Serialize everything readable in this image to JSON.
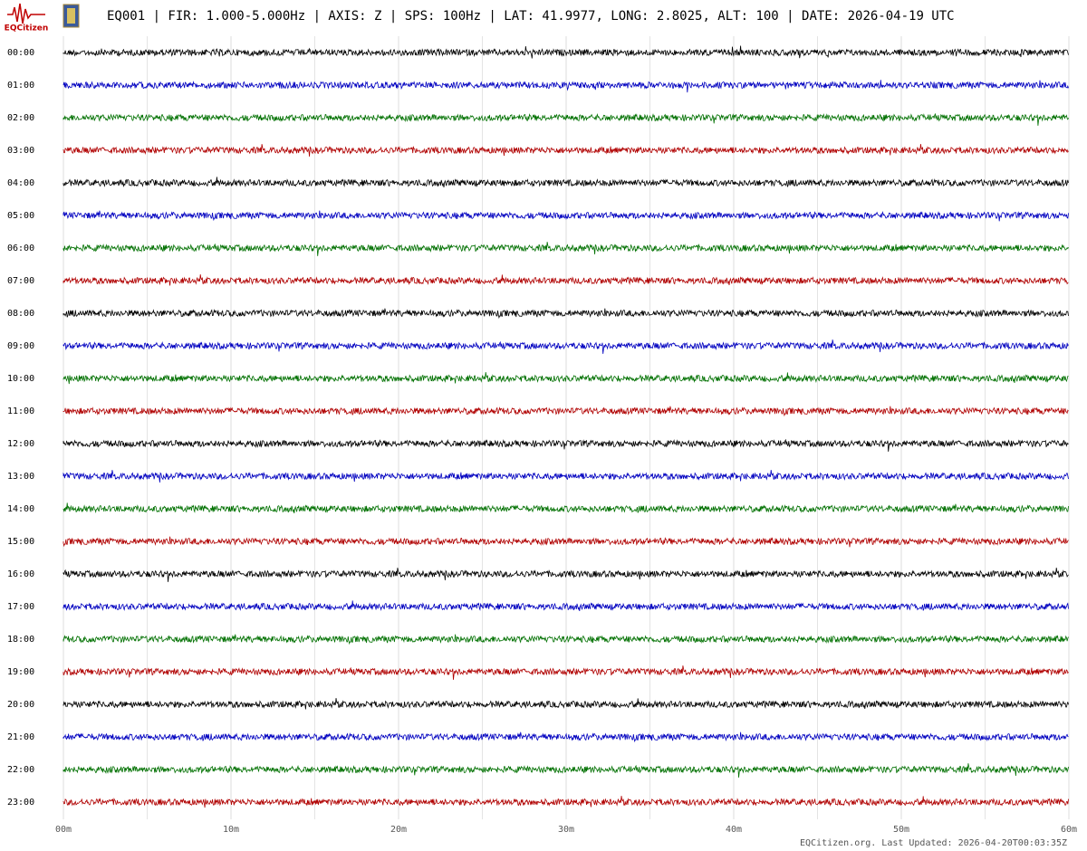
{
  "header": {
    "logo_text": "EQCitizen",
    "title": "EQ001 | FIR: 1.000-5.000Hz | AXIS: Z | SPS: 100Hz | LAT: 41.9977, LONG: 2.8025, ALT: 100 | DATE: 2026-04-19 UTC"
  },
  "chart_data": {
    "type": "helicorder",
    "categories": [
      "00:00",
      "01:00",
      "02:00",
      "03:00",
      "04:00",
      "05:00",
      "06:00",
      "07:00",
      "08:00",
      "09:00",
      "10:00",
      "11:00",
      "12:00",
      "13:00",
      "14:00",
      "15:00",
      "16:00",
      "17:00",
      "18:00",
      "19:00",
      "20:00",
      "21:00",
      "22:00",
      "23:00"
    ],
    "colors": [
      "#000000",
      "#0000c0",
      "#007000",
      "#b00000"
    ],
    "xlim": [
      0,
      60
    ],
    "xticks": [
      {
        "value": 0,
        "label": "00m"
      },
      {
        "value": 10,
        "label": "10m"
      },
      {
        "value": 20,
        "label": "20m"
      },
      {
        "value": 30,
        "label": "30m"
      },
      {
        "value": 40,
        "label": "40m"
      },
      {
        "value": 50,
        "label": "50m"
      },
      {
        "value": 60,
        "label": "60m"
      }
    ],
    "grid": true
  },
  "footer": {
    "text": "EQCitizen.org. Last Updated: 2026-04-20T00:03:35Z"
  }
}
